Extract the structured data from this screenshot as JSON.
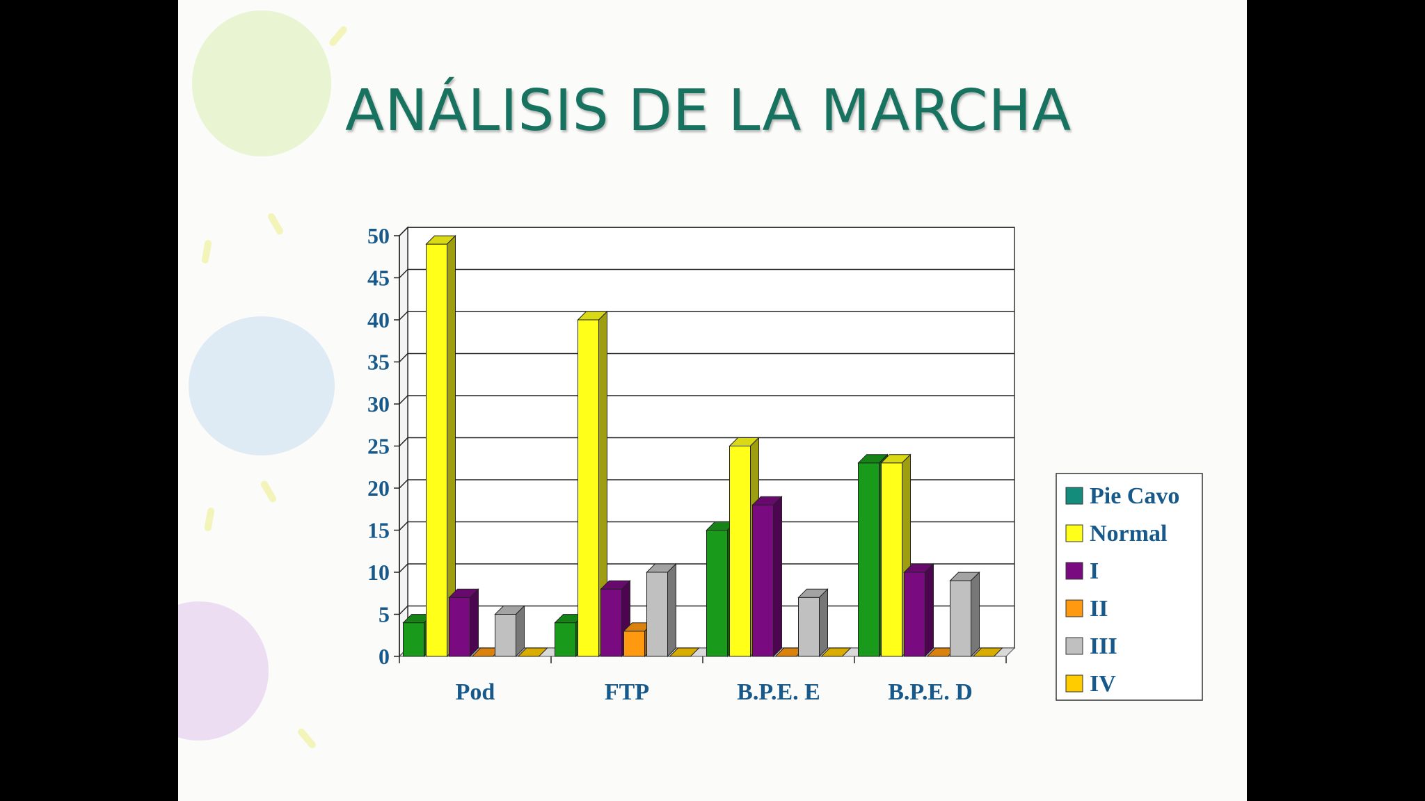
{
  "slide": {
    "title": "ANÁLISIS DE LA MARCHA",
    "title_color": "#17735f",
    "background_color": "#fbfbf9"
  },
  "chart_data": {
    "type": "bar",
    "style": "3d-clustered-column",
    "title": "",
    "xlabel": "",
    "ylabel": "",
    "categories": [
      "Pod",
      "FTP",
      "B.P.E. E",
      "B.P.E. D"
    ],
    "ylim": [
      0,
      50
    ],
    "yticks": [
      0,
      5,
      10,
      15,
      20,
      25,
      30,
      35,
      40,
      45,
      50
    ],
    "grid": true,
    "legend_position": "right",
    "series": [
      {
        "name": "Pie Cavo",
        "values": [
          4,
          4,
          15,
          23
        ],
        "color": "#1a9a1a",
        "legend_color": "#138c7c"
      },
      {
        "name": "Normal",
        "values": [
          49,
          40,
          25,
          23
        ],
        "color": "#ffff1a"
      },
      {
        "name": "I",
        "values": [
          7,
          8,
          18,
          10
        ],
        "color": "#7a0a80"
      },
      {
        "name": "II",
        "values": [
          0,
          3,
          0,
          0
        ],
        "color": "#ff9a10"
      },
      {
        "name": "III",
        "values": [
          5,
          10,
          7,
          9
        ],
        "color": "#c0c0c0"
      },
      {
        "name": "IV",
        "values": [
          0,
          0,
          0,
          0
        ],
        "color": "#ffcc00"
      }
    ]
  }
}
